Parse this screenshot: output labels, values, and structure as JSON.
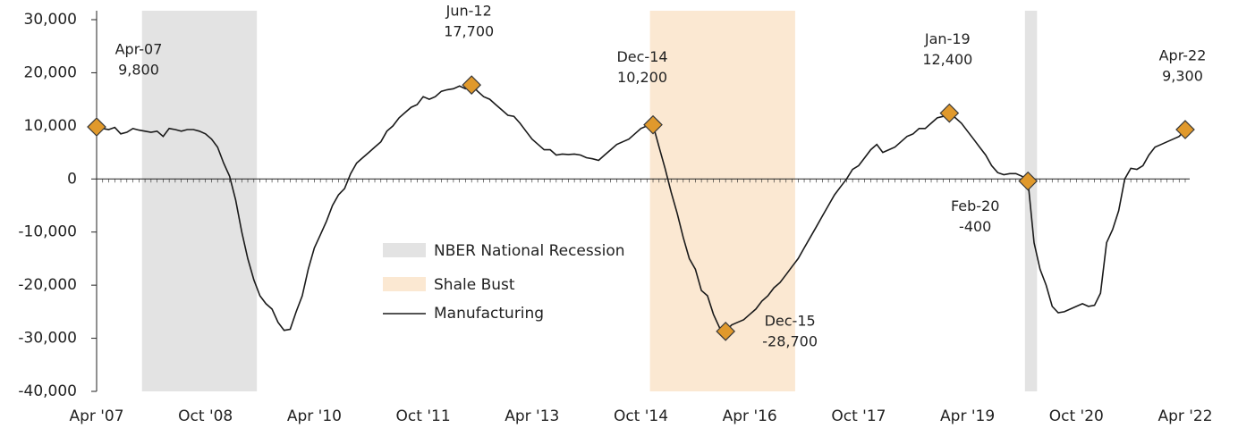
{
  "chart_data": {
    "type": "line",
    "categories": [
      "Apr '07",
      null,
      null,
      null,
      null,
      null,
      null,
      null,
      null,
      null,
      null,
      null,
      null,
      null,
      null,
      null,
      null,
      null,
      "Oct '08",
      null,
      null,
      null,
      null,
      null,
      null,
      null,
      null,
      null,
      null,
      null,
      null,
      null,
      null,
      null,
      null,
      null,
      "Apr '10",
      null,
      null,
      null,
      null,
      null,
      null,
      null,
      null,
      null,
      null,
      null,
      null,
      null,
      null,
      null,
      null,
      null,
      "Oct '11",
      null,
      null,
      null,
      null,
      null,
      null,
      null,
      null,
      null,
      null,
      null,
      null,
      null,
      null,
      null,
      null,
      null,
      "Apr '13",
      null,
      null,
      null,
      null,
      null,
      null,
      null,
      null,
      null,
      null,
      null,
      null,
      null,
      null,
      null,
      null,
      null,
      "Oct '14",
      null,
      null,
      null,
      null,
      null,
      null,
      null,
      null,
      null,
      null,
      null,
      null,
      null,
      null,
      null,
      null,
      null,
      "Apr '16",
      null,
      null,
      null,
      null,
      null,
      null,
      null,
      null,
      null,
      null,
      null,
      null,
      null,
      null,
      null,
      null,
      null,
      "Oct '17",
      null,
      null,
      null,
      null,
      null,
      null,
      null,
      null,
      null,
      null,
      null,
      null,
      null,
      null,
      null,
      null,
      null,
      "Apr '19",
      null,
      null,
      null,
      null,
      null,
      null,
      null,
      null,
      null,
      null,
      null,
      null,
      null,
      null,
      null,
      null,
      null,
      "Oct '20",
      null,
      null,
      null,
      null,
      null,
      null,
      null,
      null,
      null,
      null,
      null,
      null,
      null,
      null,
      null,
      null,
      null,
      "Apr '22"
    ],
    "series": [
      {
        "name": "Manufacturing",
        "color": "#1a1a1a",
        "values": [
          9800,
          9500,
          9300,
          9700,
          8500,
          8800,
          9500,
          9200,
          9000,
          8800,
          9000,
          8000,
          9500,
          9300,
          9000,
          9300,
          9300,
          9000,
          8500,
          7500,
          6000,
          3000,
          500,
          -4000,
          -10000,
          -15000,
          -19000,
          -22000,
          -23500,
          -24500,
          -27000,
          -28500,
          -28300,
          -25000,
          -22000,
          -17000,
          -13000,
          -10500,
          -8000,
          -5000,
          -3000,
          -1800,
          1000,
          3000,
          4000,
          5000,
          6000,
          7000,
          9000,
          10000,
          11500,
          12500,
          13500,
          14000,
          15500,
          15000,
          15500,
          16500,
          16800,
          17000,
          17500,
          17000,
          17700,
          16500,
          15500,
          15000,
          14000,
          13000,
          12000,
          11800,
          10500,
          9000,
          7500,
          6500,
          5500,
          5500,
          4500,
          4700,
          4600,
          4700,
          4500,
          4000,
          3800,
          3500,
          4500,
          5500,
          6500,
          7000,
          7500,
          8500,
          9500,
          10000,
          10200,
          6000,
          2000,
          -2500,
          -6500,
          -11000,
          -15000,
          -17000,
          -21000,
          -22000,
          -25500,
          -28000,
          -28700,
          -27500,
          -27000,
          -26500,
          -25500,
          -24500,
          -23000,
          -22000,
          -20500,
          -19500,
          -18000,
          -16500,
          -15000,
          -13000,
          -11000,
          -9000,
          -7000,
          -5000,
          -3000,
          -1500,
          0,
          1800,
          2500,
          4000,
          5500,
          6500,
          5000,
          5500,
          6000,
          7000,
          8000,
          8500,
          9500,
          9500,
          10500,
          11500,
          11800,
          12400,
          11500,
          10500,
          9000,
          7500,
          6000,
          4500,
          2500,
          1200,
          800,
          1000,
          1000,
          500,
          -400,
          -12000,
          -17000,
          -20000,
          -24000,
          -25200,
          -25000,
          -24500,
          -24000,
          -23500,
          -24000,
          -23800,
          -21500,
          -12000,
          -9500,
          -6000,
          0,
          2000,
          1800,
          2500,
          4500,
          6000,
          6500,
          7000,
          7500,
          8000,
          9300
        ]
      }
    ],
    "annotations": [
      {
        "x": "Apr-07",
        "value_label": "9,800"
      },
      {
        "x": "Jun-12",
        "value_label": "17,700"
      },
      {
        "x": "Dec-14",
        "value_label": "10,200"
      },
      {
        "x": "Dec-15",
        "value_label": "-28,700"
      },
      {
        "x": "Jan-19",
        "value_label": "12,400"
      },
      {
        "x": "Feb-20",
        "value_label": "-400"
      },
      {
        "x": "Apr-22",
        "value_label": "9,300"
      }
    ],
    "marker_color": "#e0992c",
    "shaded_regions": [
      {
        "name": "NBER National Recession",
        "color": "#e3e3e3",
        "spans": [
          [
            "Dec-07",
            "Jun-09"
          ],
          [
            "Feb-20",
            "Mar-20"
          ]
        ]
      },
      {
        "name": "Shale Bust",
        "color": "#fbe8d2",
        "spans": [
          [
            "Dec-14",
            "Nov-16"
          ]
        ]
      }
    ],
    "ylim": [
      -40000,
      30000
    ],
    "yticks": [
      {
        "value": -40000,
        "label": "-40,000"
      },
      {
        "value": -30000,
        "label": "-30,000"
      },
      {
        "value": -20000,
        "label": "-20,000"
      },
      {
        "value": -10000,
        "label": "-10,000"
      },
      0,
      {
        "value": 10000,
        "label": "10,000"
      },
      {
        "value": 20000,
        "label": "20,000"
      },
      {
        "value": 30000,
        "label": "30,000"
      }
    ],
    "grid": false
  }
}
